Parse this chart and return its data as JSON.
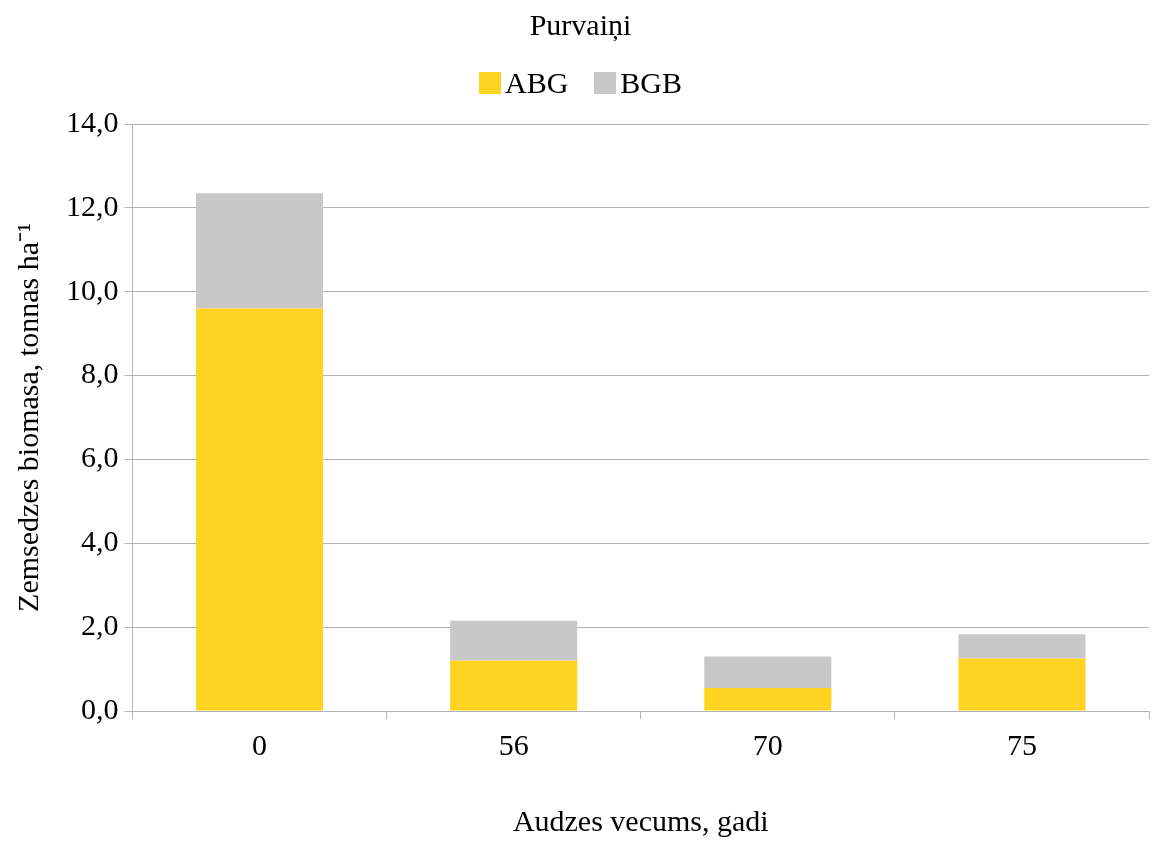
{
  "chart_data": {
    "type": "bar",
    "title": "Purvaiņi",
    "xlabel": "Audzes vecums, gadi",
    "ylabel": "Zemsedzes biomasa, tonnas ha⁻¹",
    "categories": [
      "0",
      "56",
      "70",
      "75"
    ],
    "stacked": true,
    "series": [
      {
        "name": "ABG",
        "color": "#ffd320",
        "values": [
          9.6,
          1.2,
          0.55,
          1.25
        ]
      },
      {
        "name": "BGB",
        "color": "#c8c8c8",
        "values": [
          2.75,
          0.95,
          0.75,
          0.58
        ]
      }
    ],
    "ylim": [
      0,
      14
    ],
    "yticks": [
      {
        "value": 0,
        "label": "0,0"
      },
      {
        "value": 2,
        "label": "2,0"
      },
      {
        "value": 4,
        "label": "4,0"
      },
      {
        "value": 6,
        "label": "6,0"
      },
      {
        "value": 8,
        "label": "8,0"
      },
      {
        "value": 10,
        "label": "10,0"
      },
      {
        "value": 12,
        "label": "12,0"
      },
      {
        "value": 14,
        "label": "14,0"
      }
    ],
    "grid": "y",
    "legend": "top"
  }
}
